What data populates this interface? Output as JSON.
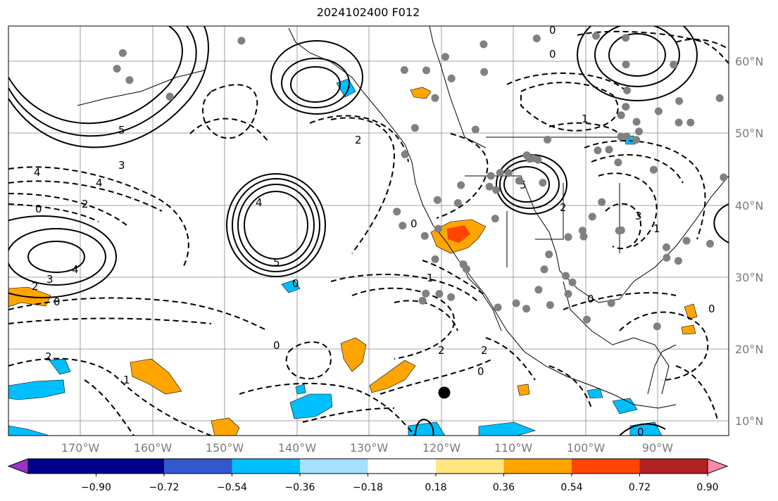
{
  "title": "2024102400 F012",
  "lat_labels": [
    "60°N",
    "50°N",
    "40°N",
    "30°N",
    "20°N",
    "10°N"
  ],
  "lon_labels": [
    "170°W",
    "160°W",
    "150°W",
    "140°W",
    "130°W",
    "120°W",
    "110°W",
    "100°W",
    "90°W"
  ],
  "colorbar": {
    "tick_labels": [
      "−0.90",
      "−0.72",
      "−0.54",
      "−0.36",
      "−0.18",
      "0.18",
      "0.36",
      "0.54",
      "0.72",
      "0.90"
    ],
    "colors": [
      "#9932cc",
      "#00008b",
      "#3358cc",
      "#00bfff",
      "#a6e0ff",
      "#ffffff",
      "#ffe680",
      "#ffa500",
      "#ff4500",
      "#b22222",
      "#ff88aa"
    ]
  },
  "contour_labels": [
    "5",
    "3",
    "4",
    "4",
    "2",
    "0",
    "3",
    "4",
    "2",
    "0",
    "4",
    "5",
    "2",
    "0",
    "2",
    "1",
    "0",
    "2",
    "0",
    "1",
    "2",
    "0",
    "0",
    "1",
    "5",
    "0",
    "2",
    "3",
    "1",
    "0",
    "0",
    "0"
  ],
  "station_marker_count": 90,
  "highlight_marker": "black-dot"
}
